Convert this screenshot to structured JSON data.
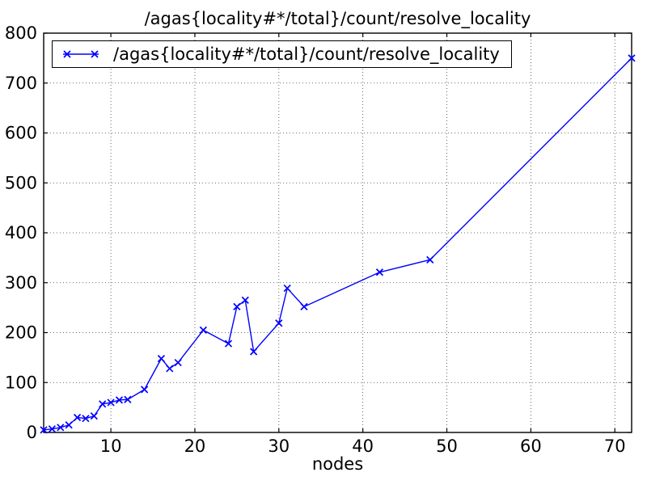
{
  "figure": {
    "title": "/agas{locality#*/total}/count/resolve_locality",
    "background_color": "#ffffff",
    "axes_color": "#000000",
    "grid_color": "#000000"
  },
  "legend": {
    "label": "/agas{locality#*/total}/count/resolve_locality",
    "marker": "x-marker",
    "line_color": "#0000ff",
    "position": "upper left"
  },
  "x_axis": {
    "label": "nodes"
  },
  "y_axis": {
    "label": ""
  },
  "chart_data": {
    "type": "line",
    "title": "/agas{locality#*/total}/count/resolve_locality",
    "xlabel": "nodes",
    "ylabel": "",
    "xlim": [
      2,
      72
    ],
    "ylim": [
      0,
      800
    ],
    "xticks": [
      10,
      20,
      30,
      40,
      50,
      60,
      70
    ],
    "yticks": [
      0,
      100,
      200,
      300,
      400,
      500,
      600,
      700,
      800
    ],
    "grid": true,
    "grid_style": "dotted",
    "legend_position": "upper left",
    "series": [
      {
        "name": "/agas{locality#*/total}/count/resolve_locality",
        "color": "#0000ff",
        "marker": "x",
        "x": [
          2,
          3,
          4,
          5,
          6,
          7,
          8,
          9,
          10,
          11,
          12,
          14,
          16,
          17,
          18,
          21,
          24,
          25,
          26,
          27,
          30,
          31,
          33,
          42,
          48,
          72
        ],
        "y": [
          5,
          7,
          10,
          15,
          30,
          28,
          33,
          57,
          60,
          65,
          66,
          86,
          148,
          128,
          140,
          205,
          178,
          252,
          265,
          162,
          219,
          289,
          252,
          321,
          346,
          750
        ]
      }
    ]
  }
}
